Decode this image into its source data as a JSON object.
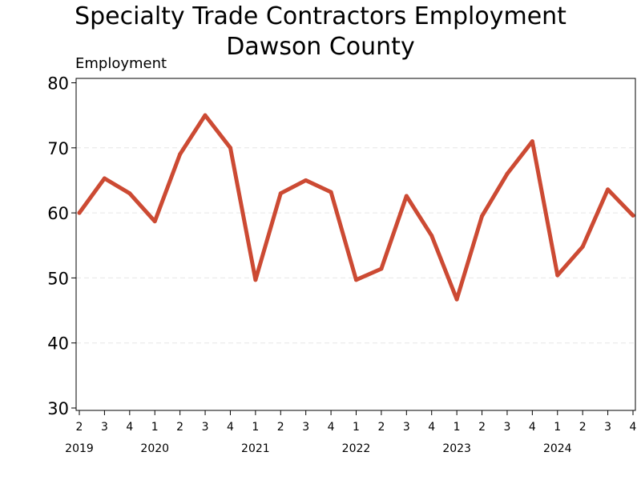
{
  "chart_data": {
    "type": "line",
    "title": [
      "Specialty Trade Contractors Employment",
      "Dawson County"
    ],
    "ylabel": "Employment",
    "xlabel": "",
    "ylim": [
      30,
      80
    ],
    "yticks": [
      30,
      40,
      50,
      60,
      70,
      80
    ],
    "grid": true,
    "legend": "none",
    "line_color": "#cc4a33",
    "grid_color": "#e6e6e6",
    "x_quarters": [
      "2",
      "3",
      "4",
      "1",
      "2",
      "3",
      "4",
      "1",
      "2",
      "3",
      "4",
      "1",
      "2",
      "3",
      "4",
      "1",
      "2",
      "3",
      "4",
      "1",
      "2",
      "3",
      "4"
    ],
    "x_years": [
      {
        "label": "2019",
        "index": 0
      },
      {
        "label": "2020",
        "index": 3
      },
      {
        "label": "2021",
        "index": 7
      },
      {
        "label": "2022",
        "index": 11
      },
      {
        "label": "2023",
        "index": 15
      },
      {
        "label": "2024",
        "index": 19
      }
    ],
    "series": [
      {
        "values": [
          60,
          65.3,
          63,
          58.7,
          69,
          75,
          70,
          49.7,
          63,
          65,
          63.2,
          49.7,
          51.4,
          62.6,
          56.5,
          46.7,
          59.5,
          66,
          71,
          50.4,
          54.8,
          63.6,
          59.6
        ]
      }
    ]
  }
}
